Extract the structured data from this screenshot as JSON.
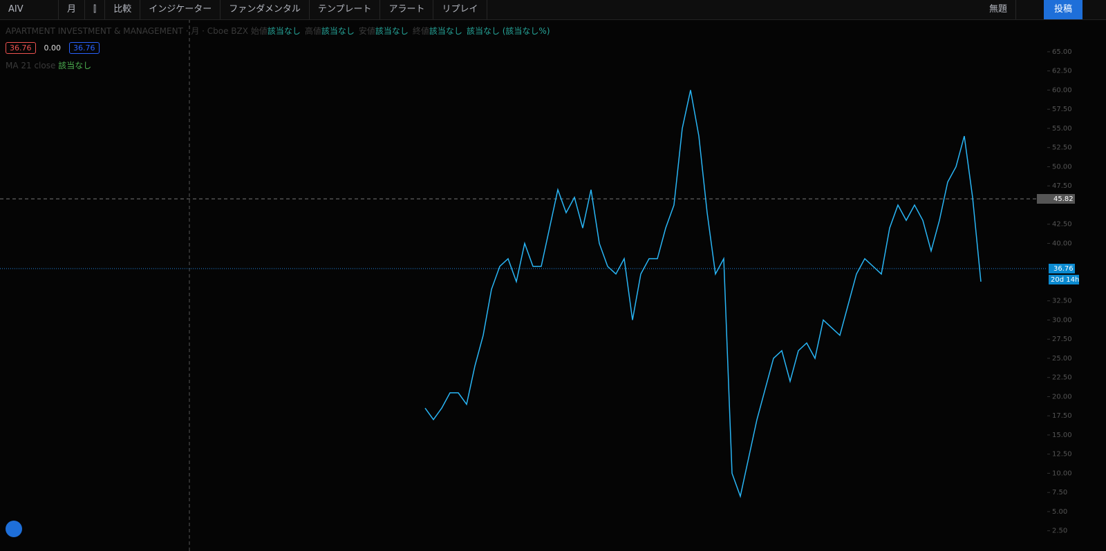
{
  "toolbar": {
    "symbol": "AIV",
    "interval": "月",
    "items": [
      "比較",
      "インジケーター",
      "ファンダメンタル",
      "テンプレート",
      "アラート",
      "リプレイ"
    ],
    "layout_name": "無題",
    "publish": "投稿"
  },
  "legend": {
    "title": "APARTMENT INVESTMENT & MANAGEMENT · 月 · Cboe BZX",
    "ohlc": [
      {
        "label": "始値",
        "value": "該当なし"
      },
      {
        "label": "高値",
        "value": "該当なし"
      },
      {
        "label": "安値",
        "value": "該当なし"
      },
      {
        "label": "終値",
        "value": "該当なし"
      }
    ],
    "change": "該当なし (該当なし%)",
    "quotes": [
      "36.76",
      "0.00",
      "36.76"
    ],
    "indicator": {
      "label": "MA 21 close",
      "value": "該当なし"
    }
  },
  "chart": {
    "type": "line",
    "color": "#29b6f6",
    "values": [
      18.5,
      17,
      18.5,
      20.5,
      20.5,
      19,
      24,
      28,
      34,
      37,
      38,
      35,
      40,
      37,
      37,
      42,
      47,
      44,
      46,
      42,
      47,
      40,
      37,
      36,
      38,
      30,
      36,
      38,
      38,
      42,
      45,
      55,
      60,
      54,
      44,
      36,
      38,
      10,
      7,
      12,
      17,
      21,
      25,
      26,
      22,
      26,
      27,
      25,
      30,
      29,
      28,
      32,
      36,
      38,
      37,
      36,
      42,
      45,
      43,
      45,
      43,
      39,
      43,
      48,
      50,
      54,
      46,
      35
    ],
    "ylim": [
      -0.14,
      69.23
    ],
    "yticks": [
      {
        "value": 65,
        "label": "65.00"
      },
      {
        "value": 62.5,
        "label": "62.50"
      },
      {
        "value": 60,
        "label": "60.00"
      },
      {
        "value": 57.5,
        "label": "57.50"
      },
      {
        "value": 55,
        "label": "55.00"
      },
      {
        "value": 52.5,
        "label": "52.50"
      },
      {
        "value": 50,
        "label": "50.00"
      },
      {
        "value": 47.5,
        "label": "47.50"
      },
      {
        "value": 42.5,
        "label": "42.50"
      },
      {
        "value": 40,
        "label": "40.00"
      },
      {
        "value": 32.5,
        "label": "32.50"
      },
      {
        "value": 30,
        "label": "30.00"
      },
      {
        "value": 27.5,
        "label": "27.50"
      },
      {
        "value": 25,
        "label": "25.00"
      },
      {
        "value": 22.5,
        "label": "22.50"
      },
      {
        "value": 20,
        "label": "20.00"
      },
      {
        "value": 17.5,
        "label": "17.50"
      },
      {
        "value": 15,
        "label": "15.00"
      },
      {
        "value": 12.5,
        "label": "12.50"
      },
      {
        "value": 10,
        "label": "10.00"
      },
      {
        "value": 7.5,
        "label": "7.50"
      },
      {
        "value": 5,
        "label": "5.00"
      },
      {
        "value": 2.5,
        "label": "2.50"
      }
    ],
    "crosshair_label": "45.82",
    "last_price_label": "36.76",
    "countdown": "20d 14h"
  }
}
